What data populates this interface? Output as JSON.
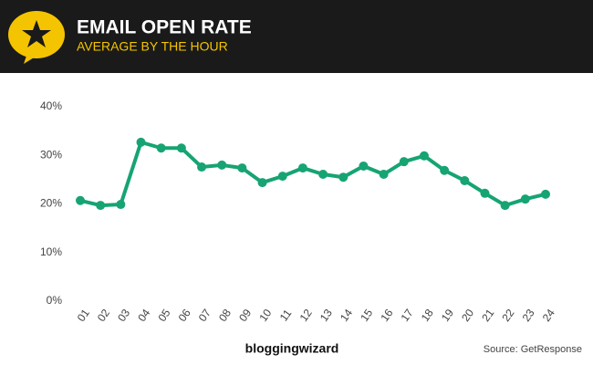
{
  "chart_data": {
    "type": "line",
    "title": "EMAIL OPEN RATE",
    "subtitle": "AVERAGE BY THE HOUR",
    "categories": [
      "01",
      "02",
      "03",
      "04",
      "05",
      "06",
      "07",
      "08",
      "09",
      "10",
      "11",
      "12",
      "13",
      "14",
      "15",
      "16",
      "17",
      "18",
      "19",
      "20",
      "21",
      "22",
      "23",
      "24"
    ],
    "values": [
      20.7,
      19.7,
      19.9,
      32.7,
      31.5,
      31.5,
      27.6,
      28.0,
      27.4,
      24.4,
      25.7,
      27.4,
      26.1,
      25.5,
      27.8,
      26.1,
      28.7,
      29.9,
      26.9,
      24.8,
      22.2,
      19.7,
      21.0,
      22.0
    ],
    "color": "#16a472",
    "ylim": [
      0,
      40
    ],
    "yticks": [
      {
        "value": 0,
        "label": "0%"
      },
      {
        "value": 10,
        "label": "10%"
      },
      {
        "value": 20,
        "label": "20%"
      },
      {
        "value": 30,
        "label": "30%"
      },
      {
        "value": 40,
        "label": "40%"
      }
    ],
    "grid": false,
    "brand": "bloggingwizard",
    "source": "Source: GetResponse"
  }
}
